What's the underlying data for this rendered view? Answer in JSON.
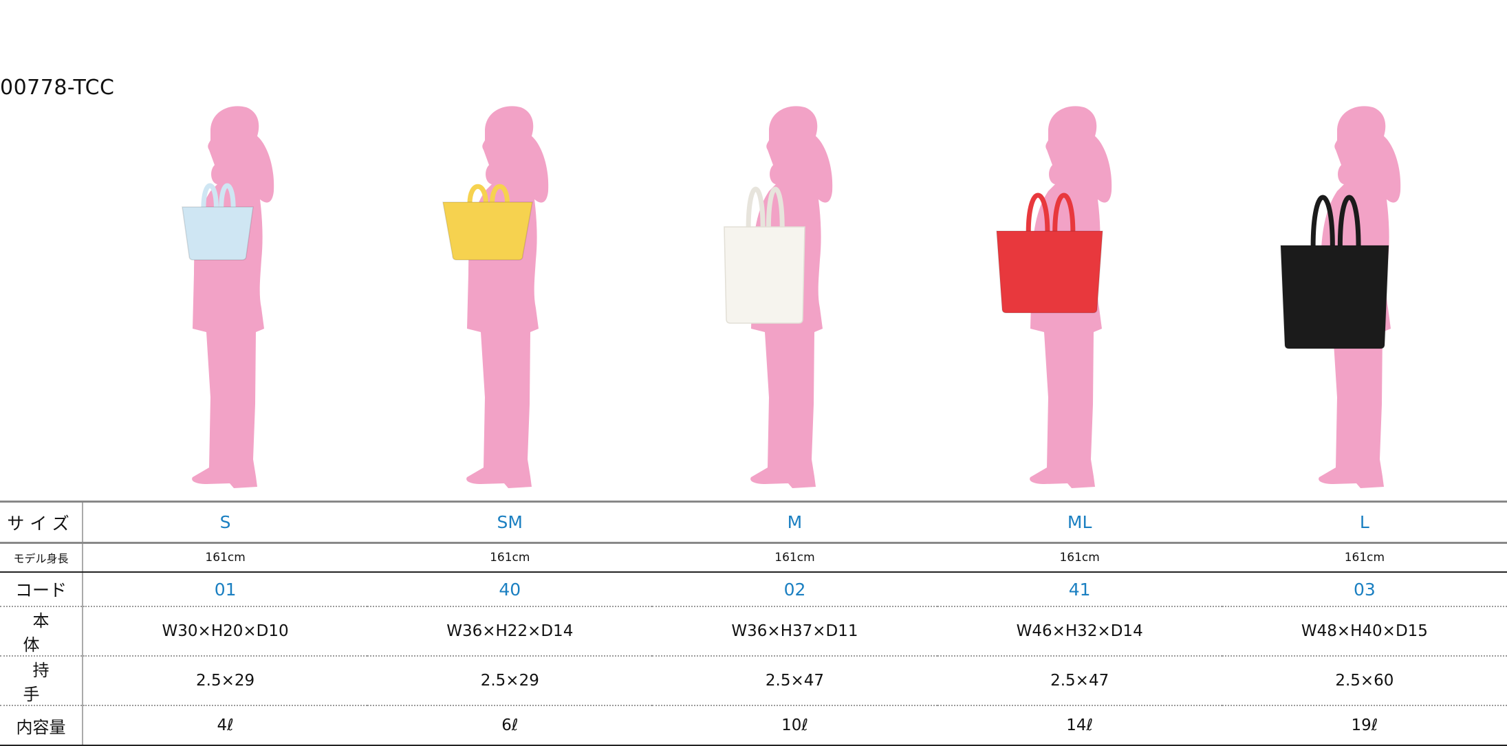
{
  "title": "00778-TCC",
  "silhouette_color": "#f2a2c6",
  "accent_color": "#1a7fc1",
  "table": {
    "labels": {
      "size": "サイズ",
      "model_height": "モデル身長",
      "code": "コード",
      "body": "本体",
      "handle": "持手",
      "capacity": "内容量"
    },
    "columns": [
      {
        "size": "S",
        "model_height": "161cm",
        "code": "01",
        "body": "W30×H20×D10",
        "handle": "2.5×29",
        "capacity": "4ℓ",
        "bag_color": "#cfe6f3",
        "bag_name": "light-blue"
      },
      {
        "size": "SM",
        "model_height": "161cm",
        "code": "40",
        "body": "W36×H22×D14",
        "handle": "2.5×29",
        "capacity": "6ℓ",
        "bag_color": "#f6d24f",
        "bag_name": "yellow"
      },
      {
        "size": "M",
        "model_height": "161cm",
        "code": "02",
        "body": "W36×H37×D11",
        "handle": "2.5×47",
        "capacity": "10ℓ",
        "bag_color": "#f6f4ee",
        "bag_name": "natural"
      },
      {
        "size": "ML",
        "model_height": "161cm",
        "code": "41",
        "body": "W46×H32×D14",
        "handle": "2.5×47",
        "capacity": "14ℓ",
        "bag_color": "#e8383d",
        "bag_name": "red"
      },
      {
        "size": "L",
        "model_height": "161cm",
        "code": "03",
        "body": "W48×H40×D15",
        "handle": "2.5×60",
        "capacity": "19ℓ",
        "bag_color": "#1b1b1b",
        "bag_name": "black"
      }
    ]
  }
}
